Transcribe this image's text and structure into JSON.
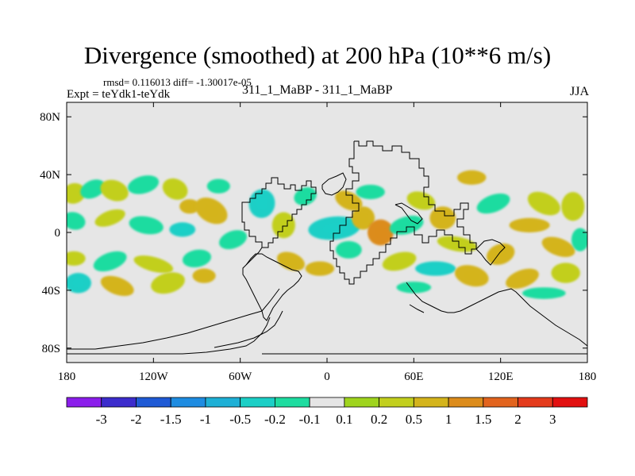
{
  "chart_data": {
    "type": "heatmap",
    "title": "Divergence (smoothed) at 200 hPa (10**6 m/s)",
    "stats_line": "rmsd= 0.116013 diff= -1.30017e-05",
    "experiment_label": "Expt = teYdk1-teYdk",
    "center_label": "311_1_MaBP - 311_1_MaBP",
    "season": "JJA",
    "map_projection": "cylindrical equidistant",
    "xlim": [
      -180,
      180
    ],
    "ylim": [
      -90,
      90
    ],
    "x_ticks": [
      {
        "value": -180,
        "label": "180"
      },
      {
        "value": -120,
        "label": "120W"
      },
      {
        "value": -60,
        "label": "60W"
      },
      {
        "value": 0,
        "label": "0"
      },
      {
        "value": 60,
        "label": "60E"
      },
      {
        "value": 120,
        "label": "120E"
      },
      {
        "value": 180,
        "label": "180"
      }
    ],
    "y_ticks": [
      {
        "value": 80,
        "label": "80N"
      },
      {
        "value": 40,
        "label": "40N"
      },
      {
        "value": 0,
        "label": "0"
      },
      {
        "value": -40,
        "label": "40S"
      },
      {
        "value": -80,
        "label": "80S"
      }
    ],
    "colorbar": {
      "colors": [
        "#8b1eeb",
        "#3c2ccc",
        "#1f5ad5",
        "#1e8ce1",
        "#1eb0d6",
        "#1ccfc6",
        "#1edca0",
        "#e5e5e5",
        "#9fd41e",
        "#c2cf1e",
        "#d4b41c",
        "#dc8c1c",
        "#e2641e",
        "#e43b1c",
        "#e21010"
      ],
      "labels": [
        "-3",
        "-2",
        "-1.5",
        "-1",
        "-0.5",
        "-0.2",
        "-0.1",
        "0.1",
        "0.2",
        "0.5",
        "1",
        "1.5",
        "2",
        "3"
      ]
    },
    "background_color": "#e6e6e6",
    "anomaly_regions": [
      {
        "lon": -175,
        "lat": 27,
        "rlon": 8,
        "rlat": 7,
        "rot": -20,
        "value": 0.2
      },
      {
        "lon": -162,
        "lat": 30,
        "rlon": 9,
        "rlat": 6,
        "rot": -25,
        "value": -0.2
      },
      {
        "lon": -147,
        "lat": 29,
        "rlon": 10,
        "rlat": 7,
        "rot": 20,
        "value": 0.2
      },
      {
        "lon": -127,
        "lat": 33,
        "rlon": 11,
        "rlat": 6,
        "rot": -15,
        "value": -0.2
      },
      {
        "lon": -105,
        "lat": 30,
        "rlon": 9,
        "rlat": 7,
        "rot": 25,
        "value": 0.2
      },
      {
        "lon": -95,
        "lat": 18,
        "rlon": 7,
        "rlat": 5,
        "rot": 0,
        "value": 0.5
      },
      {
        "lon": -175,
        "lat": 8,
        "rlon": 8,
        "rlat": 6,
        "rot": 15,
        "value": -0.2
      },
      {
        "lon": -150,
        "lat": 10,
        "rlon": 11,
        "rlat": 5,
        "rot": -20,
        "value": 0.2
      },
      {
        "lon": -125,
        "lat": 5,
        "rlon": 12,
        "rlat": 6,
        "rot": 10,
        "value": -0.2
      },
      {
        "lon": -100,
        "lat": 2,
        "rlon": 9,
        "rlat": 5,
        "rot": 0,
        "value": -0.5
      },
      {
        "lon": -80,
        "lat": 15,
        "rlon": 12,
        "rlat": 8,
        "rot": 30,
        "value": 0.5
      },
      {
        "lon": -75,
        "lat": 32,
        "rlon": 8,
        "rlat": 5,
        "rot": 0,
        "value": -0.2
      },
      {
        "lon": -65,
        "lat": -5,
        "rlon": 10,
        "rlat": 6,
        "rot": -20,
        "value": -0.2
      },
      {
        "lon": -45,
        "lat": 20,
        "rlon": 9,
        "rlat": 10,
        "rot": 10,
        "value": -0.5
      },
      {
        "lon": -30,
        "lat": 5,
        "rlon": 8,
        "rlat": 9,
        "rot": 0,
        "value": 0.2
      },
      {
        "lon": -15,
        "lat": 25,
        "rlon": 8,
        "rlat": 6,
        "rot": -20,
        "value": -0.2
      },
      {
        "lon": 5,
        "lat": 3,
        "rlon": 18,
        "rlat": 8,
        "rot": -5,
        "value": -0.5
      },
      {
        "lon": 15,
        "lat": 22,
        "rlon": 10,
        "rlat": 6,
        "rot": 25,
        "value": 0.5
      },
      {
        "lon": 25,
        "lat": 10,
        "rlon": 8,
        "rlat": 8,
        "rot": 0,
        "value": 0.5
      },
      {
        "lon": 37,
        "lat": 0,
        "rlon": 9,
        "rlat": 9,
        "rot": 0,
        "value": 1.0
      },
      {
        "lon": 30,
        "lat": 28,
        "rlon": 10,
        "rlat": 5,
        "rot": 0,
        "value": -0.2
      },
      {
        "lon": 55,
        "lat": 5,
        "rlon": 12,
        "rlat": 6,
        "rot": -15,
        "value": -0.2
      },
      {
        "lon": 65,
        "lat": 22,
        "rlon": 10,
        "rlat": 6,
        "rot": 15,
        "value": 0.2
      },
      {
        "lon": 80,
        "lat": 10,
        "rlon": 9,
        "rlat": 8,
        "rot": 0,
        "value": 0.5
      },
      {
        "lon": 100,
        "lat": 38,
        "rlon": 10,
        "rlat": 5,
        "rot": 0,
        "value": 0.5
      },
      {
        "lon": 115,
        "lat": 20,
        "rlon": 12,
        "rlat": 6,
        "rot": -20,
        "value": -0.2
      },
      {
        "lon": 150,
        "lat": 20,
        "rlon": 12,
        "rlat": 7,
        "rot": 25,
        "value": 0.2
      },
      {
        "lon": 170,
        "lat": 18,
        "rlon": 8,
        "rlat": 10,
        "rot": 0,
        "value": 0.2
      },
      {
        "lon": 140,
        "lat": 5,
        "rlon": 14,
        "rlat": 5,
        "rot": 0,
        "value": 0.5
      },
      {
        "lon": 90,
        "lat": -8,
        "rlon": 14,
        "rlat": 5,
        "rot": 10,
        "value": 0.2
      },
      {
        "lon": 120,
        "lat": -15,
        "rlon": 10,
        "rlat": 7,
        "rot": -20,
        "value": 0.5
      },
      {
        "lon": 160,
        "lat": -10,
        "rlon": 12,
        "rlat": 6,
        "rot": 20,
        "value": 0.5
      },
      {
        "lon": 175,
        "lat": -5,
        "rlon": 6,
        "rlat": 8,
        "rot": 0,
        "value": -0.2
      },
      {
        "lon": -175,
        "lat": -18,
        "rlon": 8,
        "rlat": 5,
        "rot": 0,
        "value": 0.2
      },
      {
        "lon": -150,
        "lat": -20,
        "rlon": 12,
        "rlat": 6,
        "rot": -20,
        "value": -0.2
      },
      {
        "lon": -120,
        "lat": -22,
        "rlon": 14,
        "rlat": 5,
        "rot": 15,
        "value": 0.2
      },
      {
        "lon": -90,
        "lat": -18,
        "rlon": 10,
        "rlat": 6,
        "rot": -10,
        "value": -0.2
      },
      {
        "lon": -172,
        "lat": -35,
        "rlon": 9,
        "rlat": 7,
        "rot": 0,
        "value": -0.5
      },
      {
        "lon": -145,
        "lat": -37,
        "rlon": 12,
        "rlat": 6,
        "rot": 20,
        "value": 0.5
      },
      {
        "lon": -110,
        "lat": -35,
        "rlon": 12,
        "rlat": 7,
        "rot": -15,
        "value": 0.2
      },
      {
        "lon": -85,
        "lat": -30,
        "rlon": 8,
        "rlat": 5,
        "rot": 0,
        "value": 0.5
      },
      {
        "lon": -25,
        "lat": -20,
        "rlon": 10,
        "rlat": 6,
        "rot": 20,
        "value": 0.5
      },
      {
        "lon": -5,
        "lat": -25,
        "rlon": 10,
        "rlat": 5,
        "rot": 0,
        "value": 0.5
      },
      {
        "lon": 15,
        "lat": -12,
        "rlon": 9,
        "rlat": 6,
        "rot": 0,
        "value": -0.2
      },
      {
        "lon": 50,
        "lat": -20,
        "rlon": 12,
        "rlat": 6,
        "rot": -15,
        "value": 0.2
      },
      {
        "lon": 75,
        "lat": -25,
        "rlon": 14,
        "rlat": 5,
        "rot": 0,
        "value": -0.5
      },
      {
        "lon": 100,
        "lat": -30,
        "rlon": 12,
        "rlat": 7,
        "rot": 15,
        "value": 0.5
      },
      {
        "lon": 135,
        "lat": -32,
        "rlon": 12,
        "rlat": 6,
        "rot": -20,
        "value": 0.5
      },
      {
        "lon": 165,
        "lat": -28,
        "rlon": 10,
        "rlat": 7,
        "rot": 0,
        "value": 0.2
      },
      {
        "lon": 150,
        "lat": -42,
        "rlon": 15,
        "rlat": 4,
        "rot": 0,
        "value": -0.2
      },
      {
        "lon": 60,
        "lat": -38,
        "rlon": 12,
        "rlat": 4,
        "rot": 0,
        "value": -0.2
      }
    ]
  }
}
